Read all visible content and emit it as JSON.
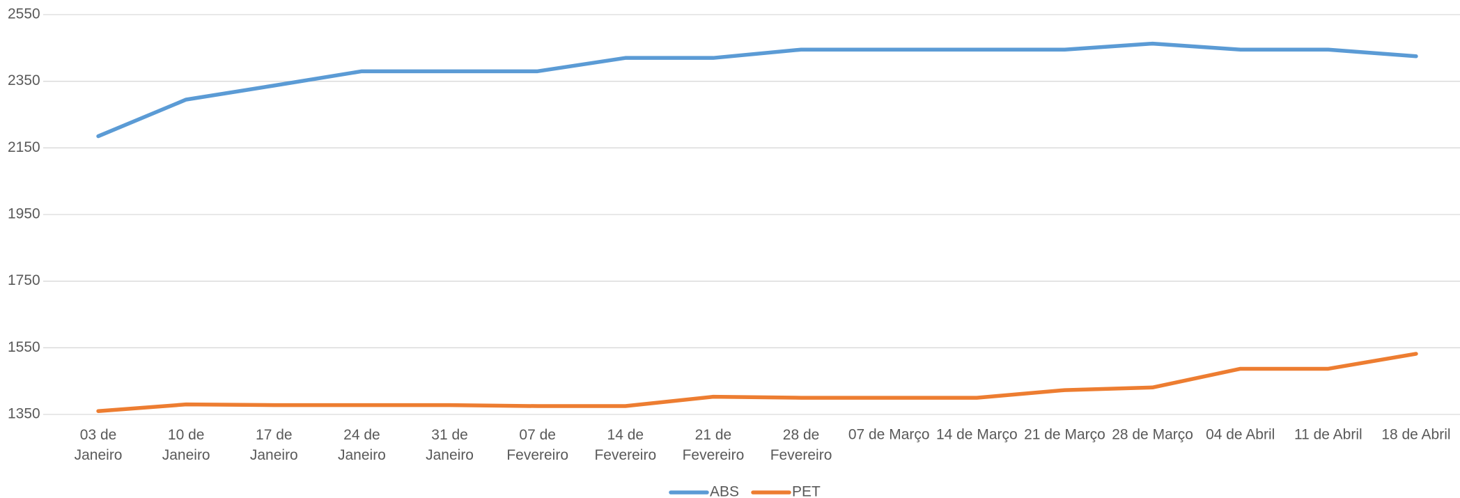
{
  "chart_data": {
    "type": "line",
    "categories": [
      "03 de Janeiro",
      "10 de Janeiro",
      "17 de Janeiro",
      "24 de Janeiro",
      "31 de Janeiro",
      "07 de Fevereiro",
      "14 de Fevereiro",
      "21 de Fevereiro",
      "28 de Fevereiro",
      "07 de Março",
      "14 de Março",
      "21 de Março",
      "28 de Março",
      "04 de Abril",
      "11 de Abril",
      "18 de Abril"
    ],
    "series": [
      {
        "name": "ABS",
        "color": "#5b9bd5",
        "values": [
          2185,
          2295,
          2337,
          2380,
          2380,
          2380,
          2420,
          2420,
          2445,
          2445,
          2445,
          2445,
          2463,
          2445,
          2445,
          2425
        ]
      },
      {
        "name": "PET",
        "color": "#ed7d31",
        "values": [
          1360,
          1380,
          1378,
          1378,
          1378,
          1375,
          1375,
          1403,
          1400,
          1400,
          1400,
          1423,
          1431,
          1487,
          1487,
          1532
        ]
      }
    ],
    "ylim": [
      1350,
      2550
    ],
    "yticks": [
      1350,
      1550,
      1750,
      1950,
      2150,
      2350,
      2550
    ],
    "grid": true,
    "legend": "bottom"
  }
}
